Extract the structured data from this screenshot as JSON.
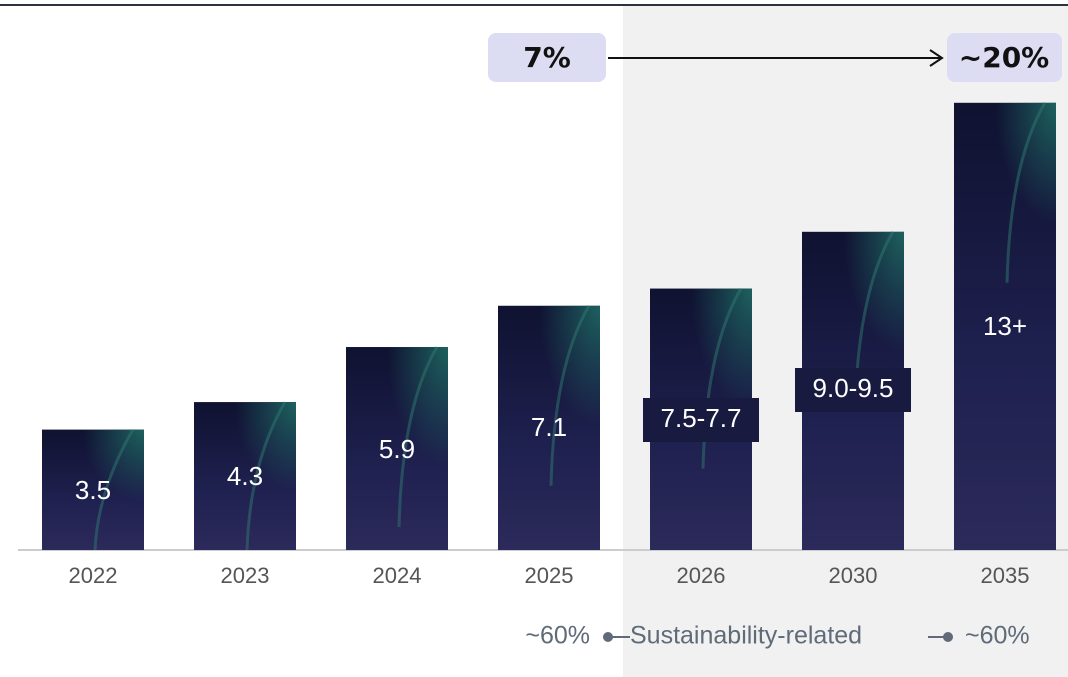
{
  "chart_data": {
    "type": "bar",
    "categories": [
      "2022",
      "2023",
      "2024",
      "2025",
      "2026",
      "2030",
      "2035"
    ],
    "values": [
      3.5,
      4.3,
      5.9,
      7.1,
      7.6,
      9.25,
      13
    ],
    "value_labels": [
      "3.5",
      "4.3",
      "5.9",
      "7.1",
      "7.5-7.7",
      "9.0-9.5",
      "13+"
    ],
    "color": "#1c1c48",
    "annotations": {
      "start_share": "7%",
      "end_share": "~20%"
    },
    "footer": {
      "left": "~60%",
      "label": "Sustainability-related",
      "right": "~60%"
    }
  }
}
